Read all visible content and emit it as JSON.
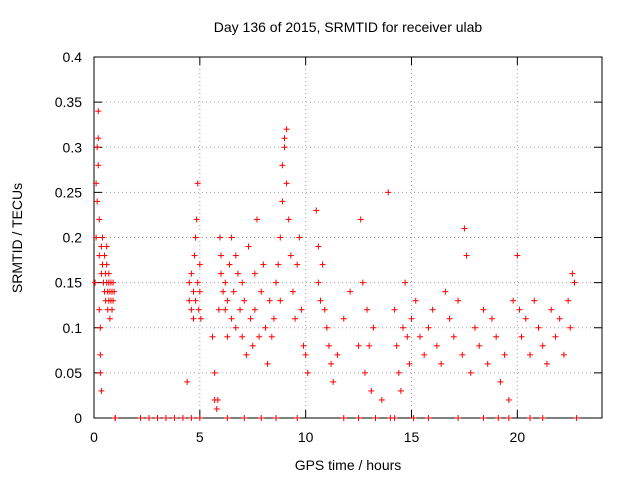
{
  "chart_data": {
    "type": "scatter",
    "title": "Day 136 of 2015, SRMTID for receiver ulab",
    "xlabel": "GPS time / hours",
    "ylabel": "SRMTID / TECUs",
    "xlim": [
      0,
      24
    ],
    "ylim": [
      0,
      0.4
    ],
    "xticks": [
      0,
      5,
      10,
      15,
      20
    ],
    "yticks": [
      0,
      0.05,
      0.1,
      0.15,
      0.2,
      0.25,
      0.3,
      0.35,
      0.4
    ],
    "xtick_labels": [
      "0",
      "5",
      "10",
      "15",
      "20"
    ],
    "ytick_labels": [
      "0",
      "0.05",
      "0.1",
      "0.15",
      "0.2",
      "0.25",
      "0.3",
      "0.35",
      "0.4"
    ],
    "grid": true,
    "marker": "+",
    "marker_color": "#ff0000",
    "series": [
      {
        "name": "SRMTID",
        "x": [
          0.05,
          0.1,
          0.1,
          0.15,
          0.15,
          0.2,
          0.2,
          0.2,
          0.25,
          0.25,
          0.25,
          0.3,
          0.3,
          0.3,
          0.35,
          0.35,
          0.35,
          0.4,
          0.4,
          0.45,
          0.5,
          0.5,
          0.55,
          0.55,
          0.6,
          0.6,
          0.6,
          0.65,
          0.65,
          0.7,
          0.7,
          0.7,
          0.75,
          0.75,
          0.8,
          0.8,
          0.85,
          0.85,
          0.9,
          0.9,
          0.95,
          1.0,
          1.0,
          4.4,
          4.5,
          4.5,
          4.6,
          4.6,
          4.7,
          4.7,
          4.75,
          4.8,
          4.8,
          4.85,
          4.9,
          4.9,
          4.95,
          5.0,
          5.0,
          5.05,
          5.6,
          5.7,
          5.7,
          5.8,
          5.85,
          5.9,
          5.95,
          6.0,
          6.0,
          6.1,
          6.2,
          6.2,
          6.3,
          6.3,
          6.4,
          6.5,
          6.5,
          6.6,
          6.7,
          6.7,
          6.8,
          6.9,
          7.0,
          7.0,
          7.1,
          7.2,
          7.3,
          7.4,
          7.5,
          7.6,
          7.6,
          7.7,
          7.8,
          7.9,
          8.0,
          8.1,
          8.2,
          8.3,
          8.4,
          8.5,
          8.6,
          8.7,
          8.8,
          8.8,
          8.9,
          8.9,
          9.0,
          9.0,
          9.1,
          9.1,
          9.2,
          9.3,
          9.4,
          9.5,
          9.6,
          9.7,
          9.8,
          9.9,
          10.0,
          10.1,
          10.5,
          10.6,
          10.6,
          10.7,
          10.8,
          10.9,
          11.0,
          11.1,
          11.2,
          11.3,
          11.5,
          11.8,
          12.1,
          12.5,
          12.6,
          12.7,
          12.8,
          12.9,
          13.0,
          13.1,
          13.2,
          13.6,
          13.9,
          14.0,
          14.2,
          14.3,
          14.4,
          14.5,
          14.6,
          14.7,
          14.8,
          14.9,
          15.0,
          15.2,
          15.4,
          15.6,
          15.8,
          16.0,
          16.2,
          16.4,
          16.6,
          16.8,
          17.0,
          17.2,
          17.4,
          17.5,
          17.6,
          17.8,
          18.0,
          18.2,
          18.4,
          18.6,
          18.8,
          19.0,
          19.2,
          19.4,
          19.6,
          19.8,
          20.0,
          20.1,
          20.2,
          20.4,
          20.6,
          20.8,
          21.0,
          21.2,
          21.4,
          21.6,
          21.8,
          22.0,
          22.2,
          22.4,
          22.5,
          22.6,
          22.7
        ],
        "y": [
          0.15,
          0.2,
          0.26,
          0.24,
          0.3,
          0.34,
          0.31,
          0.28,
          0.22,
          0.18,
          0.12,
          0.1,
          0.07,
          0.05,
          0.03,
          0.16,
          0.19,
          0.2,
          0.17,
          0.15,
          0.14,
          0.18,
          0.16,
          0.13,
          0.15,
          0.17,
          0.19,
          0.14,
          0.12,
          0.16,
          0.13,
          0.15,
          0.14,
          0.11,
          0.15,
          0.13,
          0.14,
          0.12,
          0.15,
          0.13,
          0.14,
          0.0,
          0.0,
          0.04,
          0.15,
          0.13,
          0.12,
          0.16,
          0.14,
          0.11,
          0.18,
          0.2,
          0.13,
          0.22,
          0.26,
          0.15,
          0.12,
          0.14,
          0.17,
          0.11,
          0.09,
          0.02,
          0.05,
          0.01,
          0.02,
          0.12,
          0.2,
          0.16,
          0.18,
          0.14,
          0.12,
          0.15,
          0.13,
          0.09,
          0.17,
          0.2,
          0.11,
          0.14,
          0.18,
          0.1,
          0.16,
          0.12,
          0.09,
          0.15,
          0.13,
          0.07,
          0.19,
          0.11,
          0.08,
          0.16,
          0.12,
          0.22,
          0.09,
          0.14,
          0.17,
          0.1,
          0.06,
          0.13,
          0.09,
          0.11,
          0.15,
          0.17,
          0.2,
          0.13,
          0.24,
          0.28,
          0.3,
          0.31,
          0.32,
          0.26,
          0.22,
          0.18,
          0.14,
          0.11,
          0.17,
          0.2,
          0.12,
          0.08,
          0.07,
          0.05,
          0.23,
          0.19,
          0.15,
          0.13,
          0.17,
          0.12,
          0.1,
          0.08,
          0.06,
          0.04,
          0.07,
          0.11,
          0.14,
          0.08,
          0.22,
          0.15,
          0.05,
          0.12,
          0.08,
          0.03,
          0.1,
          0.02,
          0.25,
          0.0,
          0.12,
          0.08,
          0.05,
          0.03,
          0.1,
          0.15,
          0.09,
          0.06,
          0.11,
          0.13,
          0.09,
          0.07,
          0.1,
          0.12,
          0.08,
          0.06,
          0.14,
          0.11,
          0.09,
          0.13,
          0.07,
          0.21,
          0.18,
          0.05,
          0.1,
          0.08,
          0.12,
          0.06,
          0.11,
          0.09,
          0.04,
          0.07,
          0.02,
          0.13,
          0.18,
          0.12,
          0.09,
          0.11,
          0.07,
          0.13,
          0.1,
          0.08,
          0.06,
          0.12,
          0.09,
          0.11,
          0.07,
          0.13,
          0.1,
          0.16,
          0.15
        ],
        "zero_x": [
          1.0,
          2.2,
          2.6,
          3.0,
          3.4,
          3.8,
          4.2,
          4.6,
          5.0,
          6.3,
          7.1,
          7.9,
          8.6,
          9.6,
          11.8,
          12.5,
          13.3,
          14.2,
          15.1,
          15.8,
          17.2,
          18.4,
          19.1,
          19.6,
          20.6,
          21.2,
          22.8
        ]
      }
    ]
  }
}
